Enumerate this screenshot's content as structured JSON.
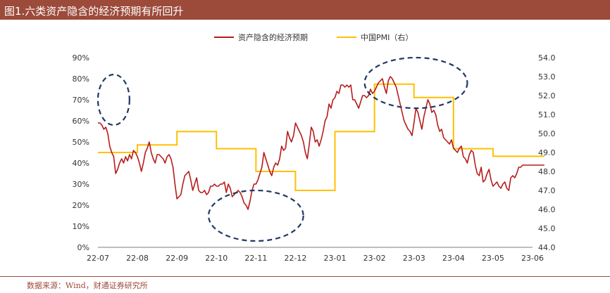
{
  "title": "图1.六类资产隐含的经济预期有所回升",
  "source": "数据来源：Wind，财通证券研究所",
  "colors": {
    "red": "#b71c1c",
    "yellow": "#ffc000",
    "title_bg": "#9c4a3a",
    "ellipse": "#1f3864"
  },
  "chart_data": {
    "type": "line",
    "legend": [
      "资产隐含的经济预期",
      "中国PMI（右）"
    ],
    "legend_position": "top-center",
    "x_ticks": [
      "22-07",
      "22-08",
      "22-09",
      "22-10",
      "22-11",
      "22-12",
      "23-01",
      "23-02",
      "23-03",
      "23-04",
      "23-05",
      "23-06"
    ],
    "y_left": {
      "min": 0,
      "max": 90,
      "ticks": [
        "0%",
        "10%",
        "20%",
        "30%",
        "40%",
        "50%",
        "60%",
        "70%",
        "80%",
        "90%"
      ]
    },
    "y_right": {
      "min": 44,
      "max": 54,
      "ticks": [
        "44.0",
        "45.0",
        "46.0",
        "47.0",
        "48.0",
        "49.0",
        "50.0",
        "51.0",
        "52.0",
        "53.0",
        "54.0"
      ]
    },
    "grid": false,
    "series": [
      {
        "name": "资产隐含的经济预期",
        "axis": "left",
        "x": [
          0.0,
          0.05,
          0.1,
          0.15,
          0.2,
          0.25,
          0.3,
          0.35,
          0.4,
          0.45,
          0.5,
          0.55,
          0.6,
          0.65,
          0.7,
          0.75,
          0.8,
          0.85,
          0.9,
          0.95,
          1.0,
          1.05,
          1.1,
          1.15,
          1.2,
          1.25,
          1.3,
          1.35,
          1.4,
          1.45,
          1.5,
          1.55,
          1.6,
          1.65,
          1.7,
          1.75,
          1.8,
          1.85,
          1.9,
          1.95,
          2.0,
          2.05,
          2.1,
          2.15,
          2.2,
          2.25,
          2.3,
          2.35,
          2.4,
          2.45,
          2.5,
          2.55,
          2.6,
          2.65,
          2.7,
          2.75,
          2.8,
          2.85,
          2.9,
          2.95,
          3.0,
          3.05,
          3.1,
          3.15,
          3.2,
          3.25,
          3.3,
          3.35,
          3.4,
          3.45,
          3.5,
          3.55,
          3.6,
          3.65,
          3.7,
          3.75,
          3.8,
          3.85,
          3.9,
          3.95,
          4.0,
          4.05,
          4.1,
          4.15,
          4.2,
          4.25,
          4.3,
          4.35,
          4.4,
          4.45,
          4.5,
          4.55,
          4.6,
          4.65,
          4.7,
          4.75,
          4.8,
          4.85,
          4.9,
          4.95,
          5.0,
          5.05,
          5.1,
          5.15,
          5.2,
          5.25,
          5.3,
          5.35,
          5.4,
          5.45,
          5.5,
          5.55,
          5.6,
          5.65,
          5.7,
          5.75,
          5.8,
          5.85,
          5.9,
          5.95,
          6.0,
          6.05,
          6.1,
          6.15,
          6.2,
          6.25,
          6.3,
          6.35,
          6.4,
          6.45,
          6.5,
          6.55,
          6.6,
          6.65,
          6.7,
          6.75,
          6.8,
          6.85,
          6.9,
          6.95,
          7.0,
          7.05,
          7.1,
          7.15,
          7.2,
          7.25,
          7.3,
          7.35,
          7.4,
          7.45,
          7.5,
          7.55,
          7.6,
          7.65,
          7.7,
          7.75,
          7.8,
          7.85,
          7.9,
          7.95,
          8.0,
          8.05,
          8.1,
          8.15,
          8.2,
          8.25,
          8.3,
          8.35,
          8.4,
          8.45,
          8.5,
          8.55,
          8.6,
          8.65,
          8.7,
          8.75,
          8.8,
          8.85,
          8.9,
          8.95,
          9.0,
          9.05,
          9.1,
          9.15,
          9.2,
          9.25,
          9.3,
          9.35,
          9.4,
          9.45,
          9.5,
          9.55,
          9.6,
          9.65,
          9.7,
          9.75,
          9.8,
          9.85,
          9.9,
          9.95,
          10.0,
          10.05,
          10.1,
          10.15,
          10.2,
          10.25,
          10.3,
          10.35,
          10.4,
          10.45,
          10.5,
          10.55,
          10.6,
          10.65,
          10.7,
          10.75,
          10.8,
          10.85,
          10.9,
          10.95,
          11.0,
          11.05,
          11.1,
          11.15,
          11.2,
          11.25,
          11.3
        ],
        "values": [
          59,
          59,
          58,
          56,
          57,
          54,
          48,
          45,
          43,
          35,
          37,
          40,
          42,
          40,
          43,
          41,
          44,
          42,
          46,
          45,
          43,
          40,
          36,
          40,
          45,
          47,
          50,
          45,
          42,
          40,
          44,
          44,
          43,
          42,
          40,
          43,
          44,
          42,
          38,
          30,
          23,
          24,
          25,
          30,
          34,
          35,
          36,
          32,
          27,
          30,
          33,
          27,
          26,
          26,
          27,
          25,
          26,
          29,
          29,
          30,
          29,
          29,
          30,
          30,
          31,
          26,
          30,
          28,
          24,
          25,
          26,
          27,
          26,
          24,
          21,
          20,
          18,
          22,
          27,
          30,
          30,
          32,
          35,
          38,
          45,
          42,
          39,
          36,
          34,
          38,
          40,
          39,
          42,
          48,
          46,
          47,
          55,
          52,
          50,
          53,
          59,
          57,
          55,
          53,
          50,
          45,
          42,
          49,
          57,
          55,
          50,
          51,
          48,
          51,
          55,
          60,
          62,
          68,
          66,
          70,
          71,
          74,
          73,
          77,
          77,
          76,
          77,
          76,
          77,
          70,
          70,
          68,
          66,
          69,
          72,
          72,
          71,
          72,
          75,
          73,
          74,
          76,
          78,
          79,
          80,
          76,
          73,
          79,
          81,
          80,
          78,
          76,
          72,
          68,
          64,
          60,
          58,
          56,
          55,
          53,
          59,
          66,
          64,
          60,
          56,
          62,
          66,
          70,
          68,
          64,
          65,
          63,
          58,
          55,
          56,
          52,
          51,
          50,
          49,
          51,
          47,
          46,
          45,
          47,
          48,
          43,
          42,
          40,
          44,
          46,
          45,
          39,
          35,
          34,
          38,
          31,
          32,
          35,
          37,
          32,
          29,
          30,
          31,
          29,
          28,
          30,
          31,
          28,
          27,
          33,
          34,
          33,
          35,
          38,
          38,
          39,
          39,
          39,
          39,
          39,
          39,
          39,
          39,
          39,
          39,
          39,
          39
        ]
      },
      {
        "name": "中国PMI（右）",
        "axis": "right",
        "steps": [
          {
            "x0": 0.0,
            "x1": 1.0,
            "value": 49.0
          },
          {
            "x0": 1.0,
            "x1": 2.0,
            "value": 49.4
          },
          {
            "x0": 2.0,
            "x1": 3.0,
            "value": 50.1
          },
          {
            "x0": 3.0,
            "x1": 4.0,
            "value": 49.2
          },
          {
            "x0": 4.0,
            "x1": 5.0,
            "value": 48.0
          },
          {
            "x0": 5.0,
            "x1": 6.0,
            "value": 47.0
          },
          {
            "x0": 6.0,
            "x1": 7.0,
            "value": 50.1
          },
          {
            "x0": 7.0,
            "x1": 8.0,
            "value": 52.6
          },
          {
            "x0": 8.0,
            "x1": 9.0,
            "value": 51.9
          },
          {
            "x0": 9.0,
            "x1": 10.0,
            "value": 49.2
          },
          {
            "x0": 10.0,
            "x1": 11.3,
            "value": 48.8
          }
        ]
      }
    ],
    "annotations": [
      {
        "shape": "dashed-ellipse",
        "cx": 0.4,
        "cy": 70,
        "rx": 0.4,
        "ry": 12
      },
      {
        "shape": "dashed-ellipse",
        "cx": 4.0,
        "cy": 15,
        "rx": 1.2,
        "ry": 12
      },
      {
        "shape": "dashed-ellipse",
        "cx": 8.05,
        "cy": 78,
        "rx": 1.3,
        "ry": 12
      }
    ]
  }
}
